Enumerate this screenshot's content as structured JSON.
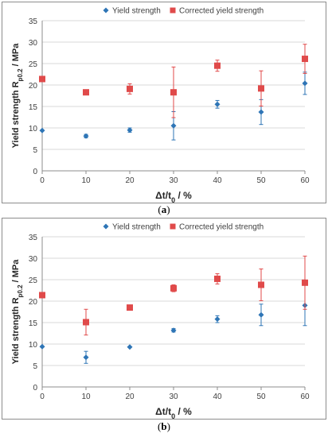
{
  "chart_data": [
    {
      "type": "scatter",
      "panel_label": "a",
      "xlabel_main": "Δt/t",
      "xlabel_sub": "0",
      "xlabel_unit": " / %",
      "ylabel_main": "Yield strength R",
      "ylabel_sub": "p0.2",
      "ylabel_unit": " / MPa",
      "xlim": [
        0,
        60
      ],
      "ylim": [
        0,
        35
      ],
      "xticks": [
        0,
        10,
        20,
        30,
        40,
        50,
        60
      ],
      "yticks": [
        0,
        5,
        10,
        15,
        20,
        25,
        30,
        35
      ],
      "grid": "horizontal",
      "legend_position": "top",
      "series": [
        {
          "name": "Yield strength",
          "marker": "diamond",
          "color": "#2e75b6",
          "points": [
            {
              "x": 0,
              "y": 9.4,
              "err": 0
            },
            {
              "x": 10,
              "y": 8.1,
              "err": 0.4
            },
            {
              "x": 20,
              "y": 9.5,
              "err": 0.5
            },
            {
              "x": 30,
              "y": 10.5,
              "err": 3.3
            },
            {
              "x": 40,
              "y": 15.5,
              "err": 0.9
            },
            {
              "x": 50,
              "y": 13.7,
              "err": 2.9
            },
            {
              "x": 60,
              "y": 20.4,
              "err": 2.6
            }
          ]
        },
        {
          "name": "Corrected yield strength",
          "marker": "square",
          "color": "#e04a4a",
          "points": [
            {
              "x": 0,
              "y": 21.4,
              "err": 0.5
            },
            {
              "x": 10,
              "y": 18.3,
              "err": 0
            },
            {
              "x": 20,
              "y": 19.1,
              "err": 1.2
            },
            {
              "x": 30,
              "y": 18.3,
              "err": 5.9
            },
            {
              "x": 40,
              "y": 24.5,
              "err": 1.3
            },
            {
              "x": 50,
              "y": 19.2,
              "err": 4.1
            },
            {
              "x": 60,
              "y": 26.1,
              "err": 3.4
            }
          ]
        }
      ]
    },
    {
      "type": "scatter",
      "panel_label": "b",
      "xlabel_main": "Δt/t",
      "xlabel_sub": "0",
      "xlabel_unit": " / %",
      "ylabel_main": "Yield strength R",
      "ylabel_sub": "p0.2",
      "ylabel_unit": " / MPa",
      "xlim": [
        0,
        60
      ],
      "ylim": [
        0,
        35
      ],
      "xticks": [
        0,
        10,
        20,
        30,
        40,
        50,
        60
      ],
      "yticks": [
        0,
        5,
        10,
        15,
        20,
        25,
        30,
        35
      ],
      "grid": "horizontal",
      "legend_position": "top",
      "series": [
        {
          "name": "Yield strength",
          "marker": "diamond",
          "color": "#2e75b6",
          "points": [
            {
              "x": 0,
              "y": 9.4,
              "err": 0
            },
            {
              "x": 10,
              "y": 6.9,
              "err": 1.4
            },
            {
              "x": 20,
              "y": 9.3,
              "err": 0
            },
            {
              "x": 30,
              "y": 13.2,
              "err": 0.4
            },
            {
              "x": 40,
              "y": 15.8,
              "err": 0.8
            },
            {
              "x": 50,
              "y": 16.8,
              "err": 2.5
            },
            {
              "x": 60,
              "y": 19.0,
              "err": 4.7
            }
          ]
        },
        {
          "name": "Corrected yield strength",
          "marker": "square",
          "color": "#e04a4a",
          "points": [
            {
              "x": 0,
              "y": 21.4,
              "err": 0.6
            },
            {
              "x": 10,
              "y": 15.1,
              "err": 3.0
            },
            {
              "x": 20,
              "y": 18.5,
              "err": 0
            },
            {
              "x": 30,
              "y": 23.0,
              "err": 0.8
            },
            {
              "x": 40,
              "y": 25.2,
              "err": 1.2
            },
            {
              "x": 50,
              "y": 23.8,
              "err": 3.7
            },
            {
              "x": 60,
              "y": 24.3,
              "err": 6.2
            }
          ]
        }
      ]
    }
  ]
}
